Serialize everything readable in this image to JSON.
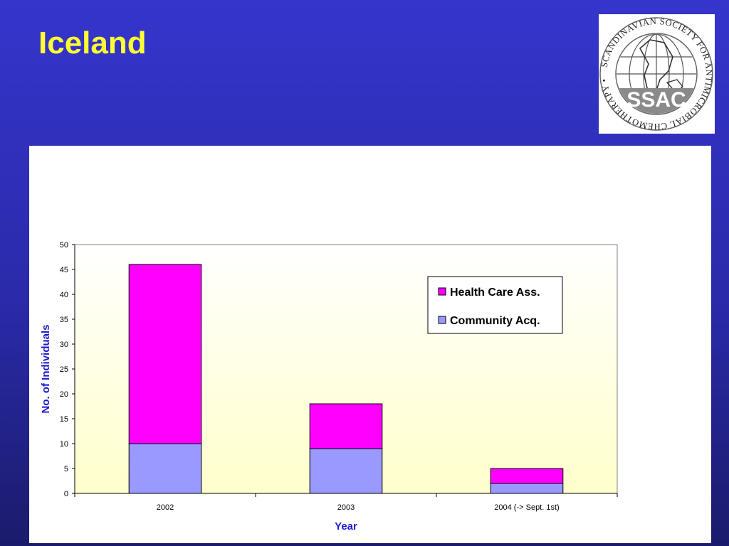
{
  "slide": {
    "title": "Iceland"
  },
  "logo": {
    "ring_text": "SCANDINAVIAN SOCIETY FOR ANTIMICROBIAL CHEMOTHERAPY •",
    "abbrev": "SSAC",
    "band_color": "#8a8a8a"
  },
  "chart_data": {
    "type": "bar",
    "stacked": true,
    "categories": [
      "2002",
      "2003",
      "2004 (-> Sept. 1st)"
    ],
    "series": [
      {
        "name": "Community Acq.",
        "values": [
          10,
          9,
          2
        ],
        "color": "#9999ff"
      },
      {
        "name": "Health Care Ass.",
        "values": [
          36,
          9,
          3
        ],
        "color": "#ff00ff"
      }
    ],
    "title": "",
    "xlabel": "Year",
    "ylabel": "No. of Individuals",
    "ylim": [
      0,
      50
    ],
    "yticks": [
      0,
      5,
      10,
      15,
      20,
      25,
      30,
      35,
      40,
      45,
      50
    ],
    "grid": false,
    "legend": {
      "position": "top-right",
      "order": [
        "Health Care Ass.",
        "Community Acq."
      ]
    },
    "plot_background": "gradient white to light yellow"
  }
}
